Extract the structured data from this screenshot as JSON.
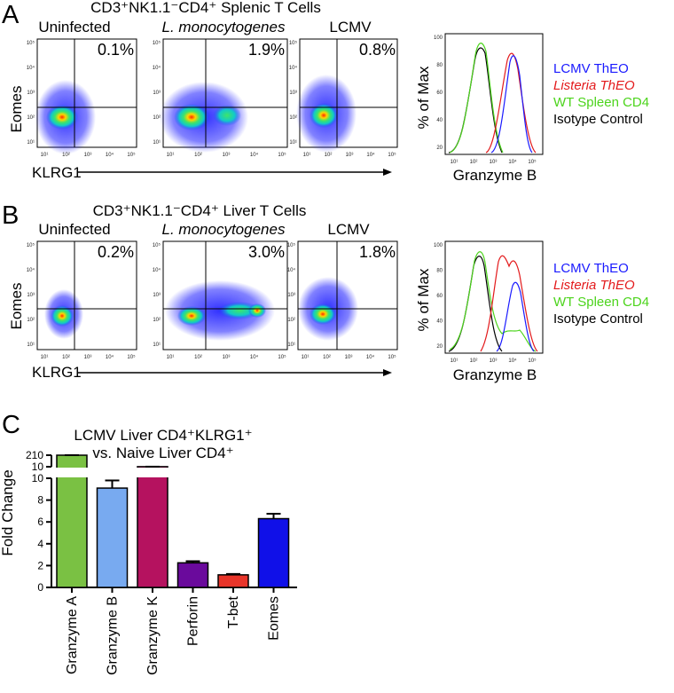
{
  "panels": {
    "A": {
      "letter": "A",
      "title": "CD3⁺NK1.1⁻CD4⁺ Splenic T Cells",
      "samples": [
        "Uninfected",
        "L. monocytogenes",
        "LCMV"
      ],
      "percentages": [
        "0.1%",
        "1.9%",
        "0.8%"
      ],
      "y_label": "Eomes",
      "x_label": "KLRG1",
      "hist_x_label": "Granzyme B",
      "hist_y_label": "% of Max"
    },
    "B": {
      "letter": "B",
      "title": "CD3⁺NK1.1⁻CD4⁺ Liver T Cells",
      "samples": [
        "Uninfected",
        "L. monocytogenes",
        "LCMV"
      ],
      "percentages": [
        "0.2%",
        "3.0%",
        "1.8%"
      ],
      "y_label": "Eomes",
      "x_label": "KLRG1",
      "hist_x_label": "Granzyme B",
      "hist_y_label": "% of Max"
    },
    "C": {
      "letter": "C",
      "title_line1": "LCMV Liver CD4⁺KLRG1⁺",
      "title_line2": "vs. Naive Liver CD4⁺",
      "y_label": "Fold Change"
    }
  },
  "flow_ticks": {
    "x": [
      "10¹",
      "10²",
      "10³",
      "10⁴",
      "10⁵"
    ],
    "y": [
      "10⁵",
      "10⁴",
      "10³",
      "10²",
      "10¹"
    ],
    "hist_y": [
      "100",
      "80",
      "60",
      "40",
      "20"
    ]
  },
  "legend": [
    {
      "label": "LCMV ThEO",
      "color": "#1a1aff"
    },
    {
      "label": "Listeria ThEO",
      "color": "#e31a1c"
    },
    {
      "label": "WT Spleen CD4",
      "color": "#4cd41c"
    },
    {
      "label": "Isotype Control",
      "color": "#000000"
    }
  ],
  "chart_data": {
    "type": "bar",
    "categories": [
      "Granzyme A",
      "Granzyme B",
      "Granzyme K",
      "Perforin",
      "T-bet",
      "Eomes"
    ],
    "values": [
      210,
      9.1,
      11,
      2.25,
      1.15,
      6.3
    ],
    "errors": [
      1,
      0.7,
      0.3,
      0.15,
      0.08,
      0.45
    ],
    "colors": [
      "#7ac143",
      "#78aaf0",
      "#b5125f",
      "#6a0a9c",
      "#e8352a",
      "#1010e8"
    ],
    "ylabel": "Fold Change",
    "y_ticks_lower": [
      "0",
      "2",
      "4",
      "6",
      "8",
      "10"
    ],
    "y_ticks_upper": [
      "10",
      "210"
    ],
    "axis_break": true
  }
}
